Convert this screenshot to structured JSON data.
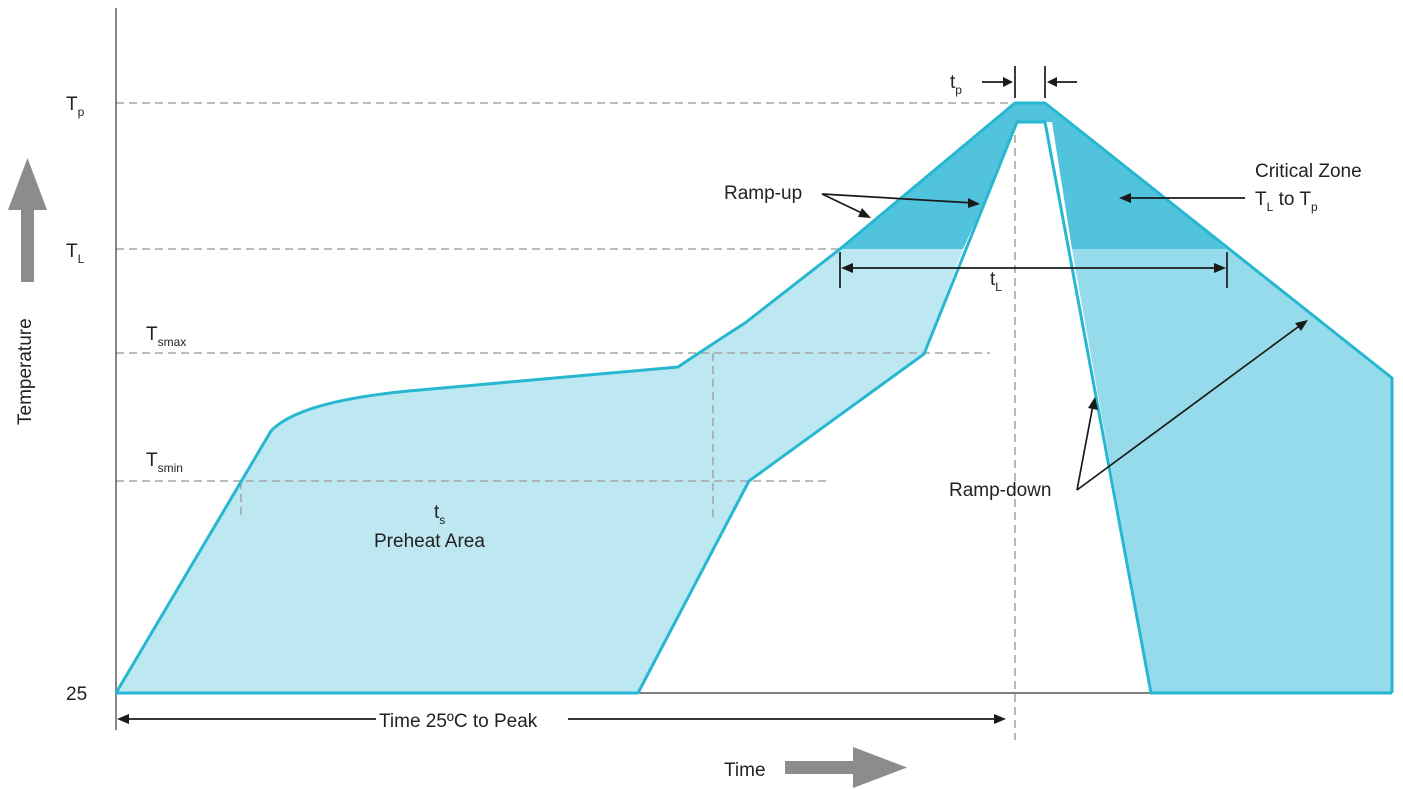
{
  "diagram": {
    "y_levels": {
      "tp": {
        "main": "T",
        "sub": "p"
      },
      "tl": {
        "main": "T",
        "sub": "L"
      },
      "tsmax": {
        "main": "T",
        "sub": "smax"
      },
      "tsmin": {
        "main": "T",
        "sub": "smin"
      },
      "t25": "25"
    },
    "y_axis_label": "Temperature",
    "x_axis_label": "Time",
    "labels": {
      "tp_small": {
        "main": "t",
        "sub": "p"
      },
      "tl_small": {
        "main": "t",
        "sub": "L"
      },
      "ts_small": {
        "main": "t",
        "sub": "s"
      },
      "preheat": "Preheat Area",
      "ramp_up": "Ramp-up",
      "ramp_down": "Ramp-down",
      "critical_zone_line1": "Critical Zone",
      "critical_zone_line2": {
        "main": "T",
        "sub_a": "L",
        "mid": " to T",
        "sub_b": "p"
      },
      "time_to_peak": "Time 25ºC to Peak"
    },
    "colors": {
      "edge": "#27b7d1",
      "light_fill": "#bde8f2",
      "mid_fill": "#96dbeb",
      "dark_fill": "#52c3dd",
      "guide": "#a6a6a6",
      "arrow_gray": "#8c8c8c"
    }
  }
}
